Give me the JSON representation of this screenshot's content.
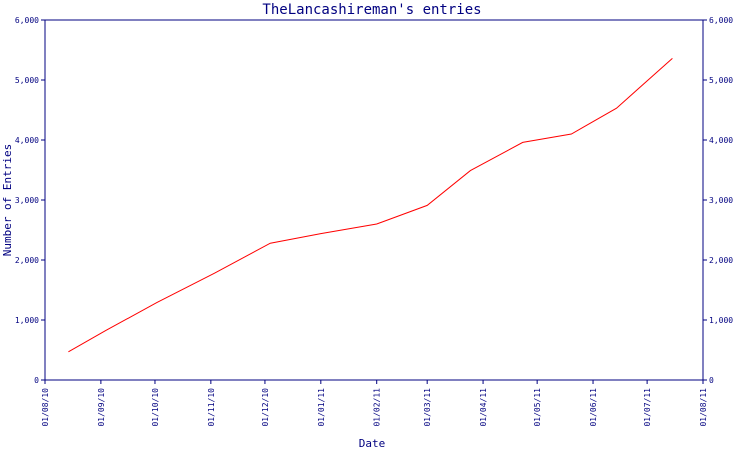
{
  "chart_data": {
    "type": "line",
    "title": "TheLancashireman's entries",
    "xlabel": "Date",
    "ylabel": "Number of Entries",
    "ylim": [
      0,
      6000
    ],
    "yticks": [
      {
        "value": 0,
        "label": "0"
      },
      {
        "value": 1000,
        "label": "1,000"
      },
      {
        "value": 2000,
        "label": "2,000"
      },
      {
        "value": 3000,
        "label": "3,000"
      },
      {
        "value": 4000,
        "label": "4,000"
      },
      {
        "value": 5000,
        "label": "5,000"
      },
      {
        "value": 6000,
        "label": "6,000"
      }
    ],
    "right_yticks": [
      {
        "value": 0,
        "label": "0"
      },
      {
        "value": 1000,
        "label": "1,000"
      },
      {
        "value": 2000,
        "label": "2,000"
      },
      {
        "value": 3000,
        "label": "3,000"
      },
      {
        "value": 4000,
        "label": "4,000"
      },
      {
        "value": 5000,
        "label": "5,000"
      },
      {
        "value": 6000,
        "label": "6,000"
      }
    ],
    "xlim": [
      "2010-08-01",
      "2011-08-01"
    ],
    "xticks": [
      {
        "date": "2010-08-01",
        "label": "01/08/10"
      },
      {
        "date": "2010-09-01",
        "label": "01/09/10"
      },
      {
        "date": "2010-10-01",
        "label": "01/10/10"
      },
      {
        "date": "2010-11-01",
        "label": "01/11/10"
      },
      {
        "date": "2010-12-01",
        "label": "01/12/10"
      },
      {
        "date": "2011-01-01",
        "label": "01/01/11"
      },
      {
        "date": "2011-02-01",
        "label": "01/02/11"
      },
      {
        "date": "2011-03-01",
        "label": "01/03/11"
      },
      {
        "date": "2011-04-01",
        "label": "01/04/11"
      },
      {
        "date": "2011-05-01",
        "label": "01/05/11"
      },
      {
        "date": "2011-06-01",
        "label": "01/06/11"
      },
      {
        "date": "2011-07-01",
        "label": "01/07/11"
      },
      {
        "date": "2011-08-01",
        "label": "01/08/11"
      }
    ],
    "series": [
      {
        "color": "#ff0000",
        "points": [
          {
            "x": "2010-08-14",
            "y": 470
          },
          {
            "x": "2010-09-04",
            "y": 830
          },
          {
            "x": "2010-10-02",
            "y": 1290
          },
          {
            "x": "2010-11-03",
            "y": 1780
          },
          {
            "x": "2010-12-04",
            "y": 2280
          },
          {
            "x": "2011-01-01",
            "y": 2440
          },
          {
            "x": "2011-02-01",
            "y": 2600
          },
          {
            "x": "2011-03-01",
            "y": 2910
          },
          {
            "x": "2011-03-25",
            "y": 3490
          },
          {
            "x": "2011-04-23",
            "y": 3960
          },
          {
            "x": "2011-05-20",
            "y": 4100
          },
          {
            "x": "2011-06-14",
            "y": 4530
          },
          {
            "x": "2011-07-15",
            "y": 5360
          }
        ]
      }
    ],
    "colors": {
      "axis": "#000080",
      "line": "#ff0000",
      "background": "#ffffff"
    }
  }
}
